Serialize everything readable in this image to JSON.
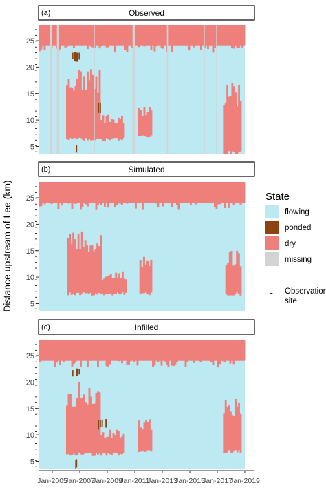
{
  "chart_data": {
    "type": "heatmap",
    "ylabel": "Distance upstream of Lee (km)",
    "x_tick_labels": [
      "Jan-2005",
      "Jan-2007",
      "Jan-2009",
      "Jan-2011",
      "Jan-2013",
      "Jan-2015",
      "Jan-2017",
      "Jan-2019"
    ],
    "x_range": [
      "2004-01",
      "2019-01"
    ],
    "y_ticks": [
      5,
      10,
      15,
      20,
      25
    ],
    "y_range": [
      3.5,
      28
    ],
    "legend": {
      "title": "State",
      "items": [
        {
          "label": "flowing",
          "color": "#bde9f3"
        },
        {
          "label": "ponded",
          "color": "#8b4512"
        },
        {
          "label": "dry",
          "color": "#ef7f7b"
        },
        {
          "label": "missing",
          "color": "#d3d3d3"
        }
      ],
      "site_marker": "-",
      "site_label_lines": [
        "Observation",
        "site"
      ]
    },
    "panels": [
      {
        "title": "Observed",
        "tag": "(a)",
        "background_state": "flowing",
        "dry_regions": [
          {
            "start": "2004-01",
            "end": "2019-01",
            "from_km": 24,
            "to_km": 28
          },
          {
            "start": "2006-01",
            "end": "2008-07",
            "from_km": 6,
            "to_km": 20
          },
          {
            "start": "2008-07",
            "end": "2010-04",
            "from_km": 6,
            "to_km": 11
          },
          {
            "start": "2011-04",
            "end": "2012-04",
            "from_km": 6.5,
            "to_km": 13
          },
          {
            "start": "2017-06",
            "end": "2018-10",
            "from_km": 3.5,
            "to_km": 17
          }
        ],
        "ponded_regions": [
          {
            "start": "2006-06",
            "end": "2007-02",
            "from_km": 21,
            "to_km": 23
          },
          {
            "start": "2008-03",
            "end": "2009-01",
            "from_km": 11,
            "to_km": 13.5
          },
          {
            "start": "2006-09",
            "end": "2006-11",
            "from_km": 3.5,
            "to_km": 6
          }
        ],
        "missing_periods": [
          {
            "start": "2004-11",
            "end": "2005-01"
          },
          {
            "start": "2005-05",
            "end": "2005-07"
          },
          {
            "start": "2008-01",
            "end": "2008-02"
          },
          {
            "start": "2010-11",
            "end": "2011-01"
          },
          {
            "start": "2013-05",
            "end": "2013-06"
          },
          {
            "start": "2016-01",
            "end": "2016-02"
          },
          {
            "start": "2016-12",
            "end": "2017-01"
          }
        ]
      },
      {
        "title": "Simulated",
        "tag": "(b)",
        "background_state": "flowing",
        "dry_regions": [
          {
            "start": "2004-01",
            "end": "2019-01",
            "from_km": 24,
            "to_km": 28
          },
          {
            "start": "2006-02",
            "end": "2008-08",
            "from_km": 6.5,
            "to_km": 19
          },
          {
            "start": "2008-08",
            "end": "2010-06",
            "from_km": 6.5,
            "to_km": 11
          },
          {
            "start": "2011-05",
            "end": "2012-04",
            "from_km": 6.5,
            "to_km": 14
          },
          {
            "start": "2017-08",
            "end": "2018-10",
            "from_km": 6.5,
            "to_km": 15
          }
        ],
        "ponded_regions": [],
        "missing_periods": []
      },
      {
        "title": "Infilled",
        "tag": "(c)",
        "background_state": "flowing",
        "dry_regions": [
          {
            "start": "2004-01",
            "end": "2019-01",
            "from_km": 24,
            "to_km": 28
          },
          {
            "start": "2006-01",
            "end": "2008-07",
            "from_km": 6,
            "to_km": 20
          },
          {
            "start": "2008-07",
            "end": "2010-04",
            "from_km": 6,
            "to_km": 11
          },
          {
            "start": "2011-04",
            "end": "2012-04",
            "from_km": 6.5,
            "to_km": 13
          },
          {
            "start": "2017-06",
            "end": "2018-10",
            "from_km": 6.5,
            "to_km": 17
          }
        ],
        "ponded_regions": [
          {
            "start": "2006-06",
            "end": "2007-02",
            "from_km": 21,
            "to_km": 23
          },
          {
            "start": "2008-03",
            "end": "2009-01",
            "from_km": 11,
            "to_km": 13.5
          },
          {
            "start": "2006-09",
            "end": "2006-11",
            "from_km": 3.5,
            "to_km": 6
          }
        ],
        "missing_periods": []
      }
    ]
  }
}
